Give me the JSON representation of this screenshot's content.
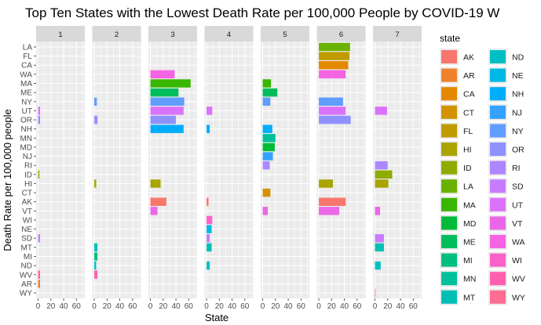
{
  "chart_data": {
    "type": "bar",
    "orientation": "horizontal",
    "title": "Top Ten States with the Lowest Death Rate per 100,000 People by COVID-19 W",
    "xlabel": "State",
    "ylabel": "Death Rate per 100,000 people",
    "xlim": [
      0,
      70
    ],
    "xticks": [
      "0",
      "20",
      "40",
      "60"
    ],
    "facets": [
      "1",
      "2",
      "3",
      "4",
      "5",
      "6",
      "7"
    ],
    "categories": [
      "LA",
      "FL",
      "CA",
      "WA",
      "MA",
      "ME",
      "NY",
      "UT",
      "OR",
      "NH",
      "MN",
      "MD",
      "NJ",
      "RI",
      "ID",
      "HI",
      "CT",
      "AK",
      "VT",
      "WI",
      "NE",
      "SD",
      "MT",
      "MI",
      "ND",
      "WV",
      "AR",
      "WY"
    ],
    "legend": {
      "title": "state",
      "position": "right",
      "entries": [
        {
          "label": "AK",
          "color": "#F8766D"
        },
        {
          "label": "AR",
          "color": "#F0822C"
        },
        {
          "label": "CA",
          "color": "#E38900"
        },
        {
          "label": "CT",
          "color": "#D39200"
        },
        {
          "label": "FL",
          "color": "#C09B00"
        },
        {
          "label": "HI",
          "color": "#A9A400"
        },
        {
          "label": "ID",
          "color": "#8EAB00"
        },
        {
          "label": "LA",
          "color": "#6BB100"
        },
        {
          "label": "MA",
          "color": "#39B600"
        },
        {
          "label": "MD",
          "color": "#00BA38"
        },
        {
          "label": "ME",
          "color": "#00BD5C"
        },
        {
          "label": "MI",
          "color": "#00BF7D"
        },
        {
          "label": "MN",
          "color": "#00C19A"
        },
        {
          "label": "MT",
          "color": "#00C0B5"
        },
        {
          "label": "ND",
          "color": "#00BFC4"
        },
        {
          "label": "NE",
          "color": "#00B8E5"
        },
        {
          "label": "NH",
          "color": "#00ADFA"
        },
        {
          "label": "NJ",
          "color": "#35A2FF"
        },
        {
          "label": "NY",
          "color": "#619CFF"
        },
        {
          "label": "OR",
          "color": "#8F91FF"
        },
        {
          "label": "RI",
          "color": "#AD87FF"
        },
        {
          "label": "SD",
          "color": "#C77CFF"
        },
        {
          "label": "UT",
          "color": "#DB72FB"
        },
        {
          "label": "VT",
          "color": "#EA68E8"
        },
        {
          "label": "WA",
          "color": "#F564E3"
        },
        {
          "label": "WI",
          "color": "#FA62C8"
        },
        {
          "label": "WV",
          "color": "#FD61AE"
        },
        {
          "label": "WY",
          "color": "#FF6C91"
        }
      ]
    },
    "panels": [
      {
        "facet": "1",
        "bars": [
          {
            "state": "UT",
            "value": 3
          },
          {
            "state": "OR",
            "value": 3
          },
          {
            "state": "ID",
            "value": 2
          },
          {
            "state": "SD",
            "value": 3
          },
          {
            "state": "WV",
            "value": 3
          },
          {
            "state": "AR",
            "value": 3
          }
        ]
      },
      {
        "facet": "2",
        "bars": [
          {
            "state": "NY",
            "value": 4
          },
          {
            "state": "OR",
            "value": 5
          },
          {
            "state": "HI",
            "value": 3
          },
          {
            "state": "MT",
            "value": 5
          },
          {
            "state": "MI",
            "value": 5
          },
          {
            "state": "ND",
            "value": 3
          },
          {
            "state": "WV",
            "value": 5
          }
        ]
      },
      {
        "facet": "3",
        "bars": [
          {
            "state": "WA",
            "value": 38
          },
          {
            "state": "MA",
            "value": 63
          },
          {
            "state": "ME",
            "value": 44
          },
          {
            "state": "NY",
            "value": 53
          },
          {
            "state": "UT",
            "value": 52
          },
          {
            "state": "OR",
            "value": 40
          },
          {
            "state": "NH",
            "value": 52
          },
          {
            "state": "HI",
            "value": 16
          },
          {
            "state": "AK",
            "value": 25
          },
          {
            "state": "VT",
            "value": 11
          }
        ]
      },
      {
        "facet": "4",
        "bars": [
          {
            "state": "UT",
            "value": 9
          },
          {
            "state": "NH",
            "value": 5
          },
          {
            "state": "AK",
            "value": 3
          },
          {
            "state": "WI",
            "value": 9
          },
          {
            "state": "NE",
            "value": 8
          },
          {
            "state": "SD",
            "value": 5
          },
          {
            "state": "MT",
            "value": 8
          },
          {
            "state": "ND",
            "value": 5
          }
        ]
      },
      {
        "facet": "5",
        "bars": [
          {
            "state": "MA",
            "value": 13
          },
          {
            "state": "ME",
            "value": 23
          },
          {
            "state": "NY",
            "value": 12
          },
          {
            "state": "NH",
            "value": 15
          },
          {
            "state": "MN",
            "value": 20
          },
          {
            "state": "MD",
            "value": 19
          },
          {
            "state": "NJ",
            "value": 16
          },
          {
            "state": "RI",
            "value": 11
          },
          {
            "state": "CT",
            "value": 12
          },
          {
            "state": "VT",
            "value": 8
          }
        ]
      },
      {
        "facet": "6",
        "bars": [
          {
            "state": "LA",
            "value": 49
          },
          {
            "state": "FL",
            "value": 48
          },
          {
            "state": "CA",
            "value": 46
          },
          {
            "state": "WA",
            "value": 42
          },
          {
            "state": "NY",
            "value": 38
          },
          {
            "state": "UT",
            "value": 42
          },
          {
            "state": "OR",
            "value": 50
          },
          {
            "state": "HI",
            "value": 22
          },
          {
            "state": "AK",
            "value": 42
          },
          {
            "state": "VT",
            "value": 32
          }
        ]
      },
      {
        "facet": "7",
        "bars": [
          {
            "state": "UT",
            "value": 19
          },
          {
            "state": "RI",
            "value": 20
          },
          {
            "state": "ID",
            "value": 27
          },
          {
            "state": "HI",
            "value": 21
          },
          {
            "state": "VT",
            "value": 8
          },
          {
            "state": "SD",
            "value": 14
          },
          {
            "state": "MT",
            "value": 14
          },
          {
            "state": "ND",
            "value": 9
          },
          {
            "state": "WY",
            "value": 1
          }
        ]
      }
    ]
  }
}
